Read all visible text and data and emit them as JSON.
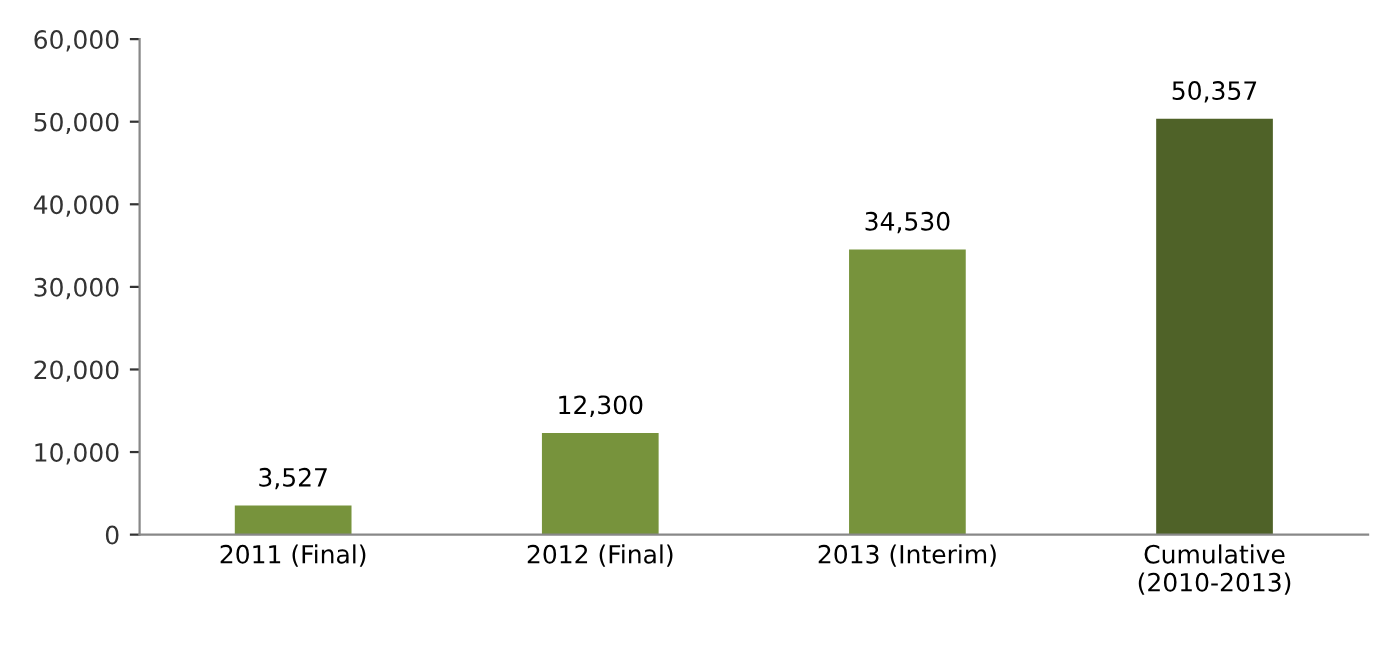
{
  "chart_data": {
    "type": "bar",
    "categories": [
      "2011 (Final)",
      "2012 (Final)",
      "2013 (Interim)",
      "Cumulative\n(2010-2013)"
    ],
    "values": [
      3527,
      12300,
      34530,
      50357
    ],
    "colors": [
      "#77933c",
      "#77933c",
      "#77933c",
      "#4f6228"
    ],
    "value_labels": [
      "3,527",
      "12,300",
      "34,530",
      "50,357"
    ],
    "ylim": [
      0,
      60000
    ],
    "yticks": [
      0,
      {
        "value": 10000,
        "label": "10,000"
      },
      {
        "value": 20000,
        "label": "20,000"
      },
      {
        "value": 30000,
        "label": "30,000"
      },
      {
        "value": 40000,
        "label": "40,000"
      },
      {
        "value": 50000,
        "label": "50,000"
      },
      {
        "value": 60000,
        "label": "60,000"
      }
    ],
    "grid": false,
    "legend": false
  }
}
